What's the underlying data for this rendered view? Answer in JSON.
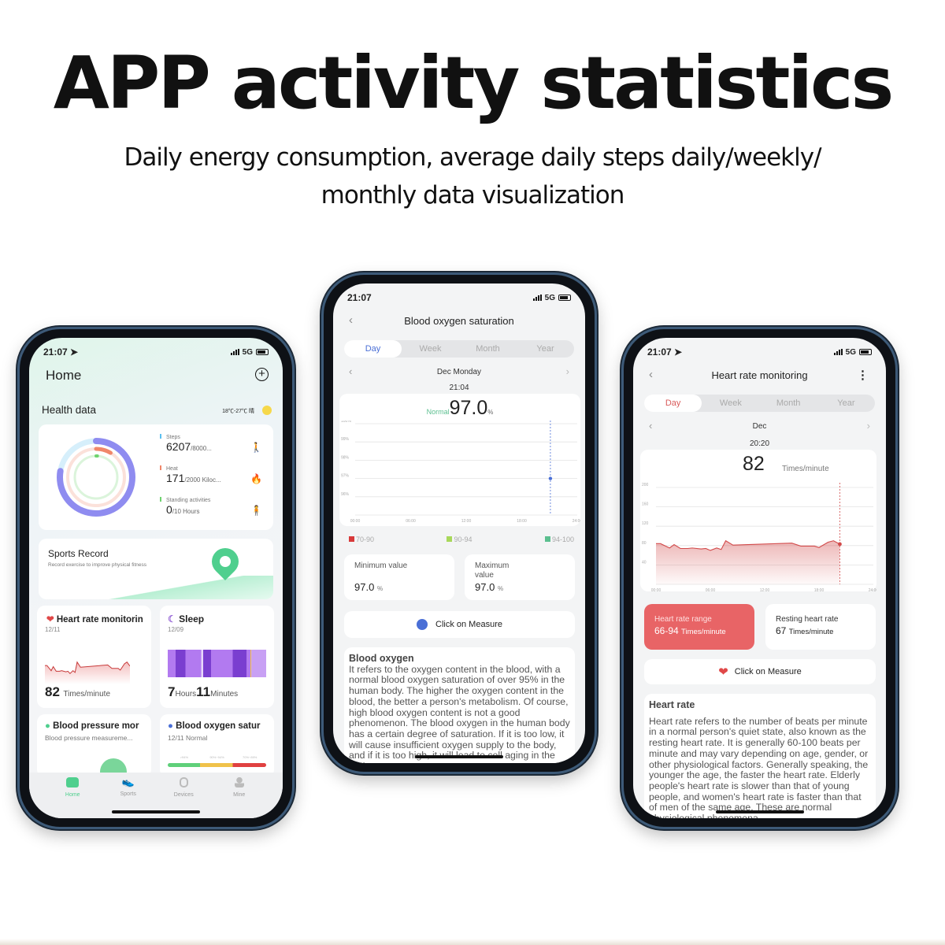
{
  "headline": "APP activity statistics",
  "subtitle_lines": [
    "Daily energy consumption, average daily steps daily/weekly/",
    "monthly data visualization"
  ],
  "status": {
    "time": "21:07",
    "network": "5G"
  },
  "home": {
    "title": "Home",
    "add_icon": "plus-circle-icon",
    "health_label": "Health data",
    "weather": "18℃-27℃ 晴",
    "metrics": [
      {
        "label": "Steps",
        "value": "6207",
        "goal": "/8000...",
        "current": 6207,
        "target": 8000,
        "color": "#5bc0f0",
        "icon": "walking-icon"
      },
      {
        "label": "Heat",
        "value": "171",
        "goal": "/2000 Kiloc...",
        "current": 171,
        "target": 2000,
        "color": "#f0876a",
        "icon": "flame-icon"
      },
      {
        "label": "Standing activities",
        "value": "0",
        "goal": "/10 Hours",
        "current": 0,
        "target": 10,
        "color": "#6fd36f",
        "icon": "standing-icon"
      }
    ],
    "sports": {
      "title": "Sports Record",
      "subtitle": "Record exercise to improve physical fitness"
    },
    "heart": {
      "title": "Heart rate monitorin",
      "date": "12/11",
      "value": "82",
      "unit": "Times/minute"
    },
    "sleep": {
      "title": "Sleep",
      "date": "12/09",
      "hours": "7",
      "hours_unit": "Hours",
      "minutes": "11",
      "minutes_unit": "Minutes"
    },
    "bp": {
      "title": "Blood pressure mor",
      "subtitle": "Blood pressure measureme..."
    },
    "oxygen": {
      "title": "Blood oxygen satur",
      "subtitle": "12/11 Normal",
      "ranges": [
        ">94%",
        "90%~94%",
        "70%~89%"
      ]
    },
    "tabs": [
      {
        "label": "Home",
        "active": true
      },
      {
        "label": "Sports"
      },
      {
        "label": "Devices"
      },
      {
        "label": "Mine"
      }
    ]
  },
  "oxygen_page": {
    "title": "Blood oxygen saturation",
    "tabs": [
      "Day",
      "Week",
      "Month",
      "Year"
    ],
    "date": "Dec Monday",
    "time": "21:04",
    "status": "Normal",
    "value": "97.0",
    "unit": "%",
    "legend": [
      {
        "label": "70-90",
        "color": "#d83a3a"
      },
      {
        "label": "90-94",
        "color": "#a8d85a"
      },
      {
        "label": "94-100",
        "color": "#5bbf8f"
      }
    ],
    "min_label": "Minimum value",
    "min_value": "97.0",
    "max_label": "Maximum value",
    "max_value": "97.0",
    "measure": "Click on Measure",
    "desc_title": "Blood oxygen",
    "desc": "It refers to the oxygen content in the blood, with a normal blood oxygen saturation of over 95% in the human body. The higher the oxygen content in the blood, the better a person's metabolism. Of course, high blood oxygen content is not a good phenomenon. The blood oxygen in the human body has a certain degree of saturation. If it is too low, it will cause insufficient oxygen supply to the body, and if it is too high, it will lead to cell aging in the body."
  },
  "heart_page": {
    "title": "Heart rate monitoring",
    "tabs": [
      "Day",
      "Week",
      "Month",
      "Year"
    ],
    "date": "Dec",
    "time": "20:20",
    "value": "82",
    "unit": "Times/minute",
    "range_label": "Heart rate range",
    "range_value": "66-94",
    "range_unit": "Times/minute",
    "resting_label": "Resting heart rate",
    "resting_value": "67",
    "resting_unit": "Times/minute",
    "measure": "Click on Measure",
    "desc_title": "Heart rate",
    "desc": "Heart rate refers to the number of beats per minute in a normal person's quiet state, also known as the resting heart rate. It is generally 60-100 beats per minute and may vary depending on age, gender, or other physiological factors. Generally speaking, the younger the age, the faster the heart rate. Elderly people's heart rate is slower than that of young people, and women's heart rate is faster than that of men of the same age. These are normal physiological phenomena."
  },
  "chart_data": [
    {
      "type": "scatter",
      "name": "blood-oxygen-day",
      "x_ticks": [
        "00:00",
        "06:00",
        "12:00",
        "18:00",
        "24:00"
      ],
      "y_ticks": [
        "100%",
        "99%",
        "98%",
        "97%",
        "96%"
      ],
      "ylim": [
        95,
        100
      ],
      "xlim": [
        0,
        24
      ],
      "points": [
        {
          "x": 21.1,
          "y": 97
        }
      ],
      "color": "#4a6fd6",
      "grid": true
    },
    {
      "type": "area",
      "name": "heart-rate-day",
      "x_ticks": [
        "00:00",
        "06:00",
        "12:00",
        "18:00",
        "24:00"
      ],
      "y_ticks": [
        "200",
        "160",
        "120",
        "80",
        "40"
      ],
      "ylim": [
        0,
        200
      ],
      "xlim": [
        0,
        24
      ],
      "color": "#d24a4a",
      "grid": true,
      "x": [
        0,
        0.5,
        1.5,
        2,
        2.7,
        3.5,
        4,
        5,
        5.5,
        6,
        6.7,
        7.2,
        7.7,
        8.5,
        15,
        16,
        17.5,
        18,
        19,
        19.6,
        20.3
      ],
      "y": [
        84,
        84,
        75,
        82,
        74,
        74,
        75,
        73,
        74,
        70,
        75,
        72,
        90,
        81,
        85,
        79,
        79,
        76,
        87,
        90,
        83
      ]
    }
  ]
}
